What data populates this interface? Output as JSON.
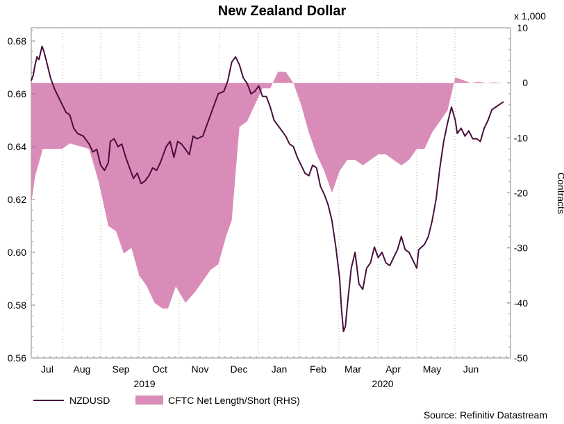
{
  "chart_data": {
    "type": "line",
    "title": "New Zealand Dollar",
    "x_months": [
      "Jul",
      "Aug",
      "Sep",
      "Oct",
      "Nov",
      "Dec",
      "Jan",
      "Feb",
      "Mar",
      "Apr",
      "May",
      "Jun"
    ],
    "x_years": [
      "2019",
      "2020"
    ],
    "y_left": {
      "ticks": [
        "0.56",
        "0.58",
        "0.60",
        "0.62",
        "0.64",
        "0.66",
        "0.68"
      ],
      "ylim": [
        0.56,
        0.685
      ]
    },
    "y_right": {
      "label": "Contracts",
      "unit_label": "x 1,000",
      "ticks": [
        "10",
        "0",
        "-10",
        "-20",
        "-30",
        "-40",
        "-50"
      ],
      "ylim": [
        -50,
        10
      ]
    },
    "series": [
      {
        "name": "NZDUSD",
        "kind": "line",
        "color": "#4a0e3c",
        "points": [
          [
            0.0,
            0.665
          ],
          [
            0.05,
            0.667
          ],
          [
            0.1,
            0.671
          ],
          [
            0.15,
            0.674
          ],
          [
            0.2,
            0.673
          ],
          [
            0.28,
            0.678
          ],
          [
            0.33,
            0.676
          ],
          [
            0.4,
            0.672
          ],
          [
            0.5,
            0.666
          ],
          [
            0.6,
            0.662
          ],
          [
            0.7,
            0.659
          ],
          [
            0.8,
            0.656
          ],
          [
            0.9,
            0.653
          ],
          [
            1.0,
            0.652
          ],
          [
            1.1,
            0.647
          ],
          [
            1.2,
            0.645
          ],
          [
            1.35,
            0.644
          ],
          [
            1.5,
            0.641
          ],
          [
            1.6,
            0.638
          ],
          [
            1.7,
            0.639
          ],
          [
            1.8,
            0.633
          ],
          [
            1.9,
            0.631
          ],
          [
            2.0,
            0.634
          ],
          [
            2.05,
            0.642
          ],
          [
            2.15,
            0.643
          ],
          [
            2.25,
            0.64
          ],
          [
            2.35,
            0.641
          ],
          [
            2.45,
            0.636
          ],
          [
            2.55,
            0.632
          ],
          [
            2.65,
            0.628
          ],
          [
            2.75,
            0.63
          ],
          [
            2.85,
            0.626
          ],
          [
            2.95,
            0.627
          ],
          [
            3.05,
            0.629
          ],
          [
            3.15,
            0.632
          ],
          [
            3.25,
            0.631
          ],
          [
            3.35,
            0.634
          ],
          [
            3.5,
            0.64
          ],
          [
            3.6,
            0.642
          ],
          [
            3.7,
            0.636
          ],
          [
            3.8,
            0.642
          ],
          [
            3.9,
            0.641
          ],
          [
            4.0,
            0.639
          ],
          [
            4.1,
            0.637
          ],
          [
            4.2,
            0.644
          ],
          [
            4.3,
            0.643
          ],
          [
            4.45,
            0.644
          ],
          [
            4.55,
            0.648
          ],
          [
            4.65,
            0.652
          ],
          [
            4.75,
            0.656
          ],
          [
            4.85,
            0.66
          ],
          [
            5.0,
            0.661
          ],
          [
            5.1,
            0.665
          ],
          [
            5.2,
            0.672
          ],
          [
            5.3,
            0.674
          ],
          [
            5.4,
            0.671
          ],
          [
            5.5,
            0.666
          ],
          [
            5.6,
            0.664
          ],
          [
            5.7,
            0.66
          ],
          [
            5.8,
            0.661
          ],
          [
            5.9,
            0.663
          ],
          [
            6.0,
            0.659
          ],
          [
            6.1,
            0.659
          ],
          [
            6.2,
            0.655
          ],
          [
            6.3,
            0.65
          ],
          [
            6.4,
            0.648
          ],
          [
            6.5,
            0.646
          ],
          [
            6.6,
            0.644
          ],
          [
            6.7,
            0.641
          ],
          [
            6.8,
            0.64
          ],
          [
            6.9,
            0.636
          ],
          [
            7.0,
            0.633
          ],
          [
            7.1,
            0.63
          ],
          [
            7.2,
            0.629
          ],
          [
            7.3,
            0.633
          ],
          [
            7.4,
            0.632
          ],
          [
            7.5,
            0.625
          ],
          [
            7.6,
            0.622
          ],
          [
            7.7,
            0.618
          ],
          [
            7.8,
            0.612
          ],
          [
            7.9,
            0.602
          ],
          [
            8.0,
            0.59
          ],
          [
            8.05,
            0.578
          ],
          [
            8.1,
            0.57
          ],
          [
            8.15,
            0.572
          ],
          [
            8.2,
            0.58
          ],
          [
            8.3,
            0.594
          ],
          [
            8.4,
            0.6
          ],
          [
            8.45,
            0.594
          ],
          [
            8.5,
            0.588
          ],
          [
            8.6,
            0.586
          ],
          [
            8.7,
            0.594
          ],
          [
            8.8,
            0.596
          ],
          [
            8.9,
            0.602
          ],
          [
            9.0,
            0.598
          ],
          [
            9.1,
            0.6
          ],
          [
            9.2,
            0.596
          ],
          [
            9.3,
            0.595
          ],
          [
            9.4,
            0.598
          ],
          [
            9.5,
            0.601
          ],
          [
            9.6,
            0.606
          ],
          [
            9.7,
            0.601
          ],
          [
            9.8,
            0.6
          ],
          [
            9.9,
            0.597
          ],
          [
            10.0,
            0.594
          ],
          [
            10.05,
            0.601
          ],
          [
            10.2,
            0.603
          ],
          [
            10.3,
            0.606
          ],
          [
            10.4,
            0.612
          ],
          [
            10.5,
            0.62
          ],
          [
            10.6,
            0.632
          ],
          [
            10.7,
            0.642
          ],
          [
            10.8,
            0.649
          ],
          [
            10.9,
            0.655
          ],
          [
            11.0,
            0.65
          ],
          [
            11.05,
            0.645
          ],
          [
            11.15,
            0.647
          ],
          [
            11.25,
            0.644
          ],
          [
            11.35,
            0.646
          ],
          [
            11.45,
            0.643
          ],
          [
            11.55,
            0.643
          ],
          [
            11.65,
            0.642
          ],
          [
            11.75,
            0.647
          ],
          [
            11.85,
            0.65
          ],
          [
            11.95,
            0.654
          ],
          [
            12.05,
            0.655
          ],
          [
            12.15,
            0.656
          ],
          [
            12.25,
            0.657
          ]
        ]
      },
      {
        "name": "CFTC Net Length/Short (RHS)",
        "kind": "area",
        "color": "#d98cb8",
        "points": [
          [
            0.0,
            -22
          ],
          [
            0.1,
            -17
          ],
          [
            0.3,
            -12
          ],
          [
            0.8,
            -12
          ],
          [
            1.0,
            -11
          ],
          [
            1.5,
            -12
          ],
          [
            1.75,
            -18
          ],
          [
            2.0,
            -26
          ],
          [
            2.2,
            -27
          ],
          [
            2.4,
            -31
          ],
          [
            2.6,
            -30
          ],
          [
            2.8,
            -35
          ],
          [
            3.0,
            -37
          ],
          [
            3.2,
            -40
          ],
          [
            3.4,
            -41
          ],
          [
            3.55,
            -41
          ],
          [
            3.75,
            -37
          ],
          [
            4.0,
            -40
          ],
          [
            4.25,
            -38
          ],
          [
            4.45,
            -36
          ],
          [
            4.65,
            -34
          ],
          [
            4.85,
            -33
          ],
          [
            5.05,
            -28
          ],
          [
            5.2,
            -25
          ],
          [
            5.4,
            -8
          ],
          [
            5.6,
            -7
          ],
          [
            5.8,
            -4
          ],
          [
            6.0,
            -1
          ],
          [
            6.2,
            -1
          ],
          [
            6.4,
            2
          ],
          [
            6.6,
            2
          ],
          [
            6.8,
            0
          ],
          [
            7.0,
            -4
          ],
          [
            7.2,
            -9
          ],
          [
            7.4,
            -13
          ],
          [
            7.6,
            -16
          ],
          [
            7.8,
            -20
          ],
          [
            8.0,
            -16
          ],
          [
            8.2,
            -14
          ],
          [
            8.4,
            -14
          ],
          [
            8.6,
            -15
          ],
          [
            8.8,
            -14
          ],
          [
            9.0,
            -13
          ],
          [
            9.2,
            -13
          ],
          [
            9.4,
            -14
          ],
          [
            9.6,
            -15
          ],
          [
            9.8,
            -14
          ],
          [
            10.0,
            -12
          ],
          [
            10.2,
            -12
          ],
          [
            10.4,
            -9
          ],
          [
            10.6,
            -7
          ],
          [
            10.8,
            -5
          ],
          [
            11.0,
            1
          ],
          [
            11.2,
            0.5
          ],
          [
            11.4,
            0
          ],
          [
            11.6,
            0.2
          ],
          [
            11.8,
            0
          ],
          [
            12.0,
            0.1
          ],
          [
            12.25,
            0
          ]
        ]
      }
    ],
    "legend": [
      {
        "label": "NZDUSD",
        "kind": "line"
      },
      {
        "label": "CFTC Net Length/Short (RHS)",
        "kind": "area"
      }
    ],
    "source": "Source: Refinitiv Datastream"
  }
}
